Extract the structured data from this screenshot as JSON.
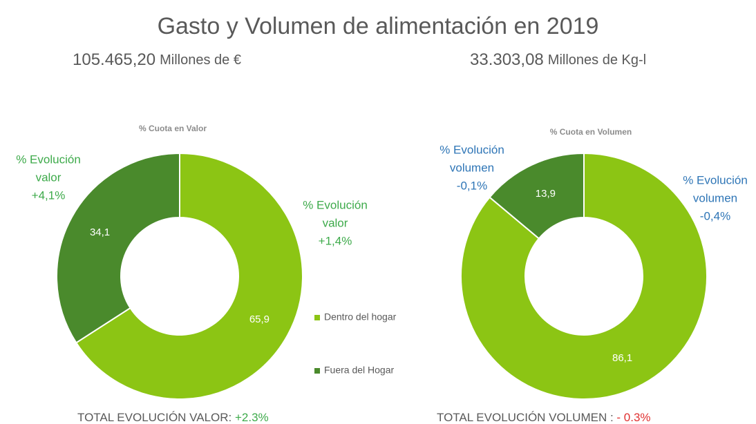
{
  "title": "Gasto y Volumen de alimentación en 2019",
  "subtitles": [
    {
      "amount": "105.465,20",
      "unit": "Millones de €"
    },
    {
      "amount": "33.303,08",
      "unit": "Millones de Kg-l"
    }
  ],
  "chart_data": [
    {
      "type": "donut",
      "title": "% Cuota en Valor",
      "categories": [
        "Dentro del hogar",
        "Fuera del Hogar"
      ],
      "values": [
        65.9,
        34.1
      ],
      "value_labels": [
        "65,9",
        "34,1"
      ],
      "colors": [
        "#8cc514",
        "#4a8a2c"
      ],
      "legend": true,
      "annotation_color": "#3daa4a",
      "annotations": [
        [
          "% Evolución",
          "valor",
          "+1,4%"
        ],
        [
          "% Evolución",
          "valor",
          "+4,1%"
        ]
      ],
      "footer": "TOTAL EVOLUCIÓN VALOR: ",
      "footer_value": "+2.3%",
      "footer_value_color": "#3daa4a"
    },
    {
      "type": "donut",
      "title": "% Cuota en Volumen",
      "values": [
        86.1,
        13.9
      ],
      "value_labels": [
        "86,1",
        "13,9"
      ],
      "colors": [
        "#8cc514",
        "#4a8a2c"
      ],
      "legend": false,
      "annotation_color": "#2e75b6",
      "annotations": [
        [
          "% Evolución",
          "volumen",
          "-0,4%"
        ],
        [
          "% Evolución",
          "volumen",
          "-0,1%"
        ]
      ],
      "footer": "TOTAL EVOLUCIÓN VOLUMEN : ",
      "footer_value": "- 0.3%",
      "footer_value_color": "#e03030"
    }
  ]
}
